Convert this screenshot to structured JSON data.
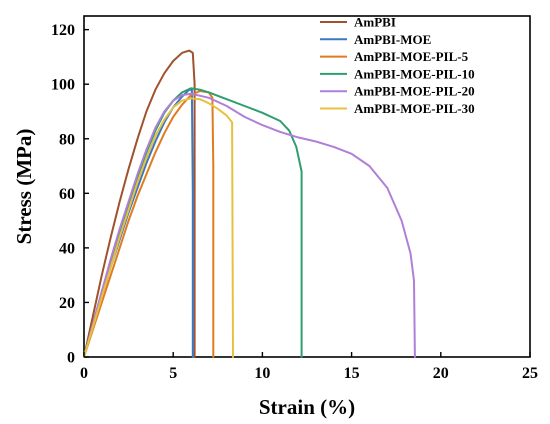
{
  "chart_data": {
    "type": "line",
    "xlabel": "Strain (%)",
    "ylabel": "Stress (MPa)",
    "xlim": [
      0,
      25
    ],
    "ylim": [
      0,
      125
    ],
    "xticks": [
      0,
      5,
      10,
      15,
      20,
      25
    ],
    "yticks": [
      0,
      20,
      40,
      60,
      80,
      100,
      120
    ],
    "legend_position": "top-right",
    "grid": false,
    "series": [
      {
        "name": "AmPBI",
        "color": "#A0522D",
        "points": [
          [
            0,
            0
          ],
          [
            0.5,
            15
          ],
          [
            1,
            30
          ],
          [
            1.5,
            44
          ],
          [
            2,
            57
          ],
          [
            2.5,
            69
          ],
          [
            3,
            80
          ],
          [
            3.5,
            90
          ],
          [
            4,
            98
          ],
          [
            4.5,
            104
          ],
          [
            5,
            108.5
          ],
          [
            5.5,
            111.5
          ],
          [
            5.9,
            112.3
          ],
          [
            6.1,
            111.5
          ],
          [
            6.2,
            100
          ],
          [
            6.2,
            0
          ]
        ]
      },
      {
        "name": "AmPBI-MOE",
        "color": "#3A78C2",
        "points": [
          [
            0,
            0
          ],
          [
            0.5,
            11
          ],
          [
            1,
            22
          ],
          [
            1.5,
            33
          ],
          [
            2,
            43
          ],
          [
            2.5,
            53
          ],
          [
            3,
            62
          ],
          [
            3.5,
            71
          ],
          [
            4,
            79
          ],
          [
            4.5,
            86
          ],
          [
            5,
            91.5
          ],
          [
            5.5,
            95.5
          ],
          [
            5.9,
            98
          ],
          [
            6.05,
            98
          ],
          [
            6.1,
            60
          ],
          [
            6.1,
            0
          ]
        ]
      },
      {
        "name": "AmPBI-MOE-PIL-5",
        "color": "#E07B20",
        "points": [
          [
            0,
            0
          ],
          [
            0.5,
            10
          ],
          [
            1,
            20
          ],
          [
            1.5,
            30
          ],
          [
            2,
            40
          ],
          [
            2.5,
            50
          ],
          [
            3,
            59
          ],
          [
            3.5,
            67
          ],
          [
            4,
            75
          ],
          [
            4.5,
            82
          ],
          [
            5,
            88
          ],
          [
            5.5,
            92.5
          ],
          [
            6,
            96
          ],
          [
            6.5,
            97.5
          ],
          [
            7,
            97
          ],
          [
            7.2,
            95
          ],
          [
            7.25,
            70
          ],
          [
            7.25,
            0
          ]
        ]
      },
      {
        "name": "AmPBI-MOE-PIL-10",
        "color": "#2E9E6E",
        "points": [
          [
            0,
            0
          ],
          [
            0.5,
            12
          ],
          [
            1,
            24
          ],
          [
            1.5,
            35
          ],
          [
            2,
            46
          ],
          [
            2.5,
            56
          ],
          [
            3,
            66
          ],
          [
            3.5,
            75
          ],
          [
            4,
            83
          ],
          [
            4.5,
            89.5
          ],
          [
            5,
            94
          ],
          [
            5.5,
            97
          ],
          [
            6,
            98.5
          ],
          [
            6.5,
            98
          ],
          [
            7,
            97
          ],
          [
            8,
            94.5
          ],
          [
            9,
            92
          ],
          [
            10,
            89.5
          ],
          [
            11,
            86.5
          ],
          [
            11.5,
            83
          ],
          [
            11.9,
            77
          ],
          [
            12.2,
            68
          ],
          [
            12.2,
            0
          ]
        ]
      },
      {
        "name": "AmPBI-MOE-PIL-20",
        "color": "#B07FD8",
        "points": [
          [
            0,
            0
          ],
          [
            0.5,
            12
          ],
          [
            1,
            24
          ],
          [
            1.5,
            36
          ],
          [
            2,
            47
          ],
          [
            2.5,
            57
          ],
          [
            3,
            67
          ],
          [
            3.5,
            76
          ],
          [
            4,
            84
          ],
          [
            4.5,
            90
          ],
          [
            5,
            94
          ],
          [
            5.5,
            96
          ],
          [
            6,
            96.5
          ],
          [
            7,
            95
          ],
          [
            8,
            92
          ],
          [
            9,
            88
          ],
          [
            10,
            85
          ],
          [
            11,
            82.5
          ],
          [
            12,
            80.5
          ],
          [
            13,
            79
          ],
          [
            14,
            77
          ],
          [
            15,
            74.5
          ],
          [
            16,
            70
          ],
          [
            17,
            62
          ],
          [
            17.8,
            50
          ],
          [
            18.3,
            38
          ],
          [
            18.5,
            28
          ],
          [
            18.55,
            0
          ]
        ]
      },
      {
        "name": "AmPBI-MOE-PIL-30",
        "color": "#E8C040",
        "points": [
          [
            0,
            0
          ],
          [
            0.5,
            11
          ],
          [
            1,
            22
          ],
          [
            1.5,
            33
          ],
          [
            2,
            44
          ],
          [
            2.5,
            54
          ],
          [
            3,
            64
          ],
          [
            3.5,
            73
          ],
          [
            4,
            81
          ],
          [
            4.5,
            87
          ],
          [
            5,
            91.5
          ],
          [
            5.5,
            94
          ],
          [
            6,
            94.8
          ],
          [
            6.5,
            94.5
          ],
          [
            7,
            93
          ],
          [
            7.5,
            91
          ],
          [
            8,
            88.5
          ],
          [
            8.3,
            86
          ],
          [
            8.35,
            0
          ]
        ]
      }
    ]
  }
}
